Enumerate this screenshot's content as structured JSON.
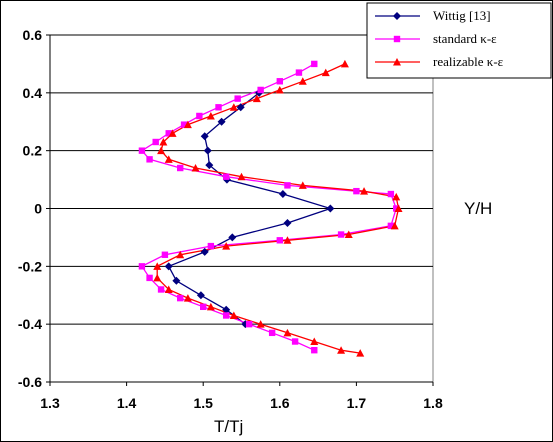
{
  "chart_data": {
    "type": "line",
    "xlabel": "T/Tj",
    "ylabel": "Y/H",
    "xlim": [
      1.3,
      1.8
    ],
    "ylim": [
      -0.6,
      0.6
    ],
    "xticks": [
      "1.3",
      "1.4",
      "1.5",
      "1.6",
      "1.7",
      "1.8"
    ],
    "yticks": [
      "0.6",
      "0.4",
      "0.2",
      "0",
      "-0.2",
      "-0.4",
      "-0.6"
    ],
    "grid": "horizontal",
    "legend_position": "top-right",
    "series": [
      {
        "name": "Wittig [13]",
        "color": "#00007f",
        "marker": "diamond",
        "points": [
          [
            1.573,
            0.4
          ],
          [
            1.549,
            0.35
          ],
          [
            1.524,
            0.3
          ],
          [
            1.502,
            0.25
          ],
          [
            1.506,
            0.2
          ],
          [
            1.508,
            0.15
          ],
          [
            1.531,
            0.1
          ],
          [
            1.604,
            0.05
          ],
          [
            1.666,
            0.0
          ],
          [
            1.61,
            -0.05
          ],
          [
            1.538,
            -0.1
          ],
          [
            1.502,
            -0.15
          ],
          [
            1.455,
            -0.2
          ],
          [
            1.465,
            -0.25
          ],
          [
            1.497,
            -0.3
          ],
          [
            1.53,
            -0.35
          ],
          [
            1.555,
            -0.4
          ]
        ]
      },
      {
        "name": "standard κ-ε",
        "color": "#ff00ff",
        "marker": "square",
        "points": [
          [
            1.645,
            0.5
          ],
          [
            1.625,
            0.47
          ],
          [
            1.6,
            0.44
          ],
          [
            1.575,
            0.41
          ],
          [
            1.545,
            0.38
          ],
          [
            1.52,
            0.35
          ],
          [
            1.495,
            0.32
          ],
          [
            1.475,
            0.29
          ],
          [
            1.455,
            0.26
          ],
          [
            1.438,
            0.23
          ],
          [
            1.42,
            0.2
          ],
          [
            1.43,
            0.17
          ],
          [
            1.47,
            0.14
          ],
          [
            1.53,
            0.11
          ],
          [
            1.61,
            0.08
          ],
          [
            1.7,
            0.06
          ],
          [
            1.745,
            0.05
          ],
          [
            1.752,
            0.0
          ],
          [
            1.745,
            -0.06
          ],
          [
            1.68,
            -0.09
          ],
          [
            1.6,
            -0.11
          ],
          [
            1.51,
            -0.13
          ],
          [
            1.45,
            -0.16
          ],
          [
            1.42,
            -0.2
          ],
          [
            1.43,
            -0.24
          ],
          [
            1.445,
            -0.28
          ],
          [
            1.47,
            -0.31
          ],
          [
            1.5,
            -0.34
          ],
          [
            1.53,
            -0.37
          ],
          [
            1.56,
            -0.4
          ],
          [
            1.59,
            -0.43
          ],
          [
            1.62,
            -0.46
          ],
          [
            1.645,
            -0.49
          ]
        ]
      },
      {
        "name": "realizable κ-ε",
        "color": "#ff0000",
        "marker": "triangle",
        "points": [
          [
            1.685,
            0.5
          ],
          [
            1.66,
            0.47
          ],
          [
            1.63,
            0.44
          ],
          [
            1.6,
            0.41
          ],
          [
            1.57,
            0.38
          ],
          [
            1.54,
            0.35
          ],
          [
            1.51,
            0.32
          ],
          [
            1.48,
            0.29
          ],
          [
            1.46,
            0.26
          ],
          [
            1.448,
            0.23
          ],
          [
            1.445,
            0.2
          ],
          [
            1.455,
            0.17
          ],
          [
            1.49,
            0.14
          ],
          [
            1.55,
            0.11
          ],
          [
            1.63,
            0.08
          ],
          [
            1.71,
            0.06
          ],
          [
            1.752,
            0.04
          ],
          [
            1.755,
            0.0
          ],
          [
            1.75,
            -0.06
          ],
          [
            1.69,
            -0.09
          ],
          [
            1.61,
            -0.11
          ],
          [
            1.53,
            -0.13
          ],
          [
            1.47,
            -0.16
          ],
          [
            1.44,
            -0.2
          ],
          [
            1.44,
            -0.24
          ],
          [
            1.455,
            -0.28
          ],
          [
            1.48,
            -0.31
          ],
          [
            1.51,
            -0.34
          ],
          [
            1.54,
            -0.37
          ],
          [
            1.575,
            -0.4
          ],
          [
            1.61,
            -0.43
          ],
          [
            1.645,
            -0.46
          ],
          [
            1.68,
            -0.49
          ],
          [
            1.705,
            -0.5
          ]
        ]
      }
    ]
  }
}
